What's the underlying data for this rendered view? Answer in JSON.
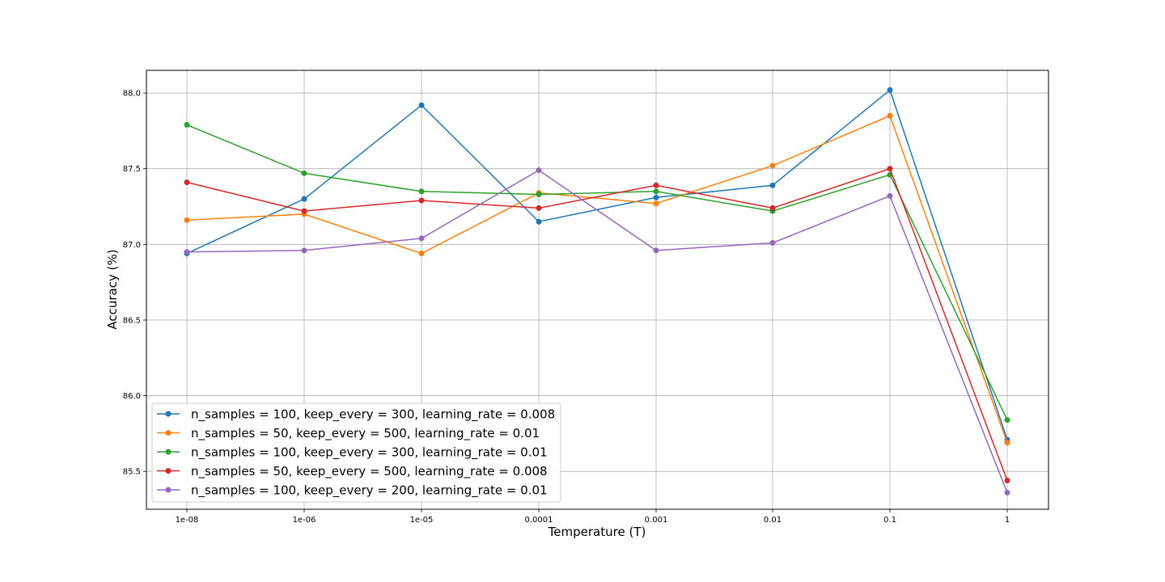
{
  "chart_data": {
    "type": "line",
    "title": "",
    "xlabel": "Temperature (T)",
    "ylabel": "Accuracy (%)",
    "x": [
      "1e-08",
      "1e-06",
      "1e-05",
      "0.0001",
      "0.001",
      "0.01",
      "0.1",
      "1"
    ],
    "ylim": [
      85.25,
      88.15
    ],
    "yticks": [
      "85.5",
      "86.0",
      "86.5",
      "87.0",
      "87.5",
      "88.0"
    ],
    "grid": true,
    "legend_position": "lower-left",
    "series": [
      {
        "name": "n_samples = 100, keep_every = 300, learning_rate = 0.008",
        "color": "#1f77b4",
        "values": [
          86.94,
          87.3,
          87.92,
          87.15,
          87.31,
          87.39,
          88.02,
          85.71
        ]
      },
      {
        "name": "n_samples = 50, keep_every = 500, learning_rate = 0.01",
        "color": "#ff7f0e",
        "values": [
          87.16,
          87.2,
          86.94,
          87.34,
          87.27,
          87.52,
          87.85,
          85.69
        ]
      },
      {
        "name": "n_samples = 100, keep_every = 300, learning_rate = 0.01",
        "color": "#2ca02c",
        "values": [
          87.79,
          87.47,
          87.35,
          87.33,
          87.35,
          87.22,
          87.46,
          85.84
        ]
      },
      {
        "name": "n_samples = 50, keep_every = 500, learning_rate = 0.008",
        "color": "#d62728",
        "values": [
          87.41,
          87.22,
          87.29,
          87.24,
          87.39,
          87.24,
          87.5,
          85.44
        ]
      },
      {
        "name": "n_samples = 100, keep_every = 200, learning_rate = 0.01",
        "color": "#9467bd",
        "values": [
          86.95,
          86.96,
          87.04,
          87.49,
          86.96,
          87.01,
          87.32,
          85.36
        ]
      }
    ]
  }
}
